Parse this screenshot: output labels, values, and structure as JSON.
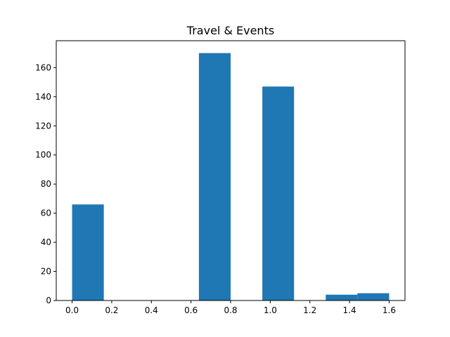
{
  "chart_data": {
    "type": "bar",
    "title": "Travel & Events",
    "xlabel": "",
    "ylabel": "",
    "bins": [
      {
        "x0": 0.0,
        "x1": 0.16,
        "value": 66
      },
      {
        "x0": 0.16,
        "x1": 0.32,
        "value": 0
      },
      {
        "x0": 0.32,
        "x1": 0.48,
        "value": 0
      },
      {
        "x0": 0.48,
        "x1": 0.64,
        "value": 0
      },
      {
        "x0": 0.64,
        "x1": 0.8,
        "value": 170
      },
      {
        "x0": 0.8,
        "x1": 0.96,
        "value": 0
      },
      {
        "x0": 0.96,
        "x1": 1.12,
        "value": 147
      },
      {
        "x0": 1.12,
        "x1": 1.28,
        "value": 0
      },
      {
        "x0": 1.28,
        "x1": 1.44,
        "value": 4
      },
      {
        "x0": 1.44,
        "x1": 1.6,
        "value": 5
      }
    ],
    "xlim": [
      -0.08,
      1.68
    ],
    "ylim": [
      0,
      178.5
    ],
    "xticks": [
      "0.0",
      "0.2",
      "0.4",
      "0.6",
      "0.8",
      "1.0",
      "1.2",
      "1.4",
      "1.6"
    ],
    "yticks": [
      "0",
      "20",
      "40",
      "60",
      "80",
      "100",
      "120",
      "140",
      "160"
    ],
    "bar_color": "#1f77b4",
    "grid": false,
    "legend": "none"
  }
}
